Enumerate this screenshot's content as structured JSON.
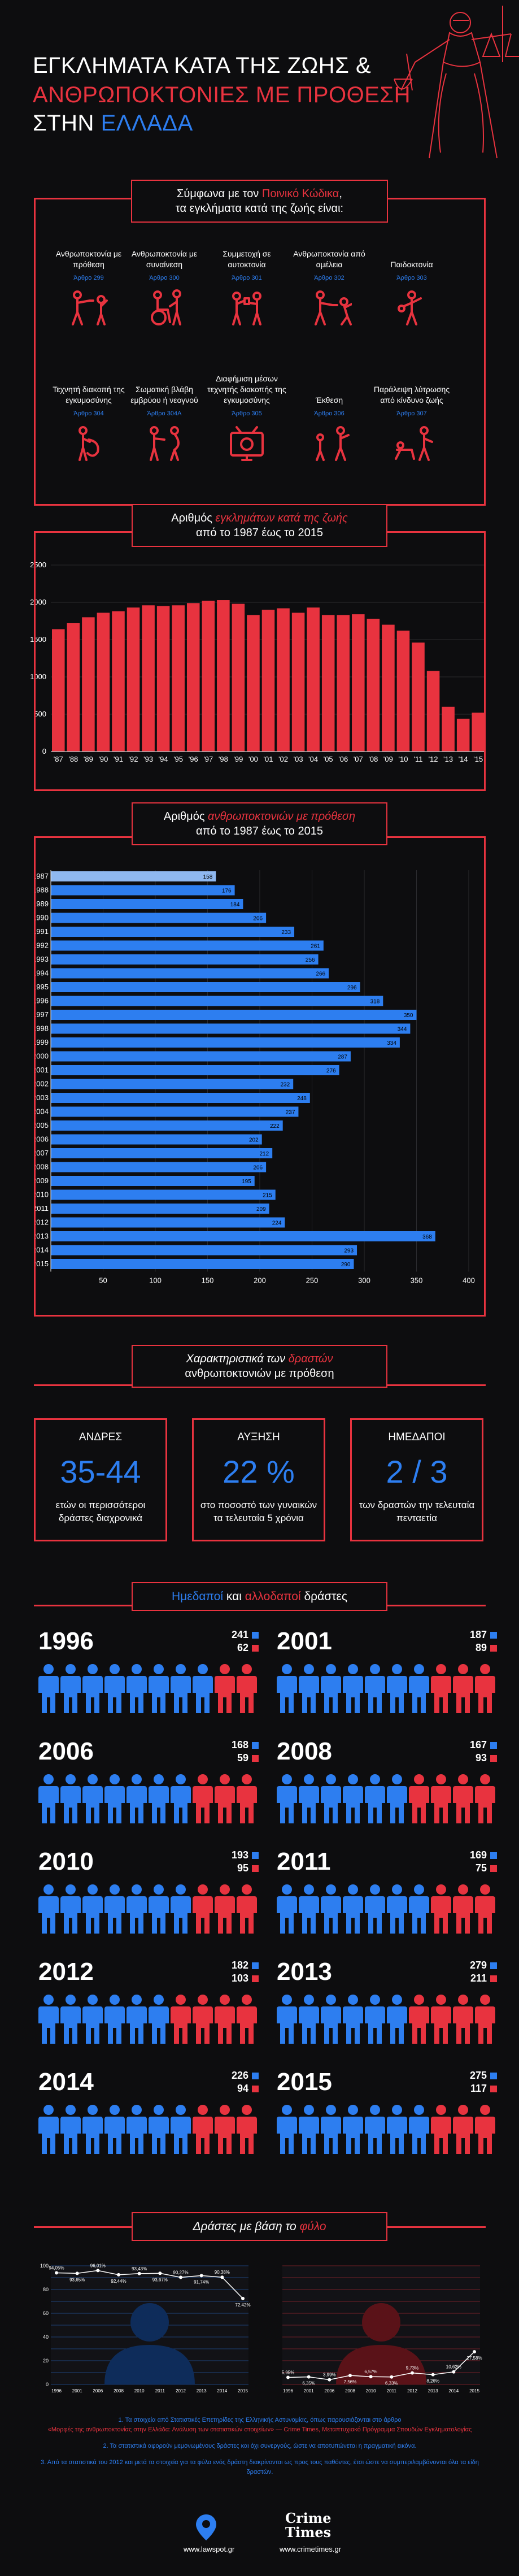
{
  "header": {
    "line1": "ΕΓΚΛΗΜΑΤΑ ΚΑΤΑ ΤΗΣ ΖΩΗΣ &",
    "line2": "ΑΝΘΡΩΠΟΚΤΟΝΙΕΣ ΜΕ ΠΡΟΘΕΣΗ",
    "line3a": "ΣΤΗΝ",
    "line3b": "ΕΛΛΑΔΑ"
  },
  "penal": {
    "title_a": "Σύμφωνα με τον",
    "title_hl": "Ποινικό Κώδικα",
    "title_b": ",",
    "title_line2": "τα εγκλήματα κατά της ζωής είναι:",
    "crimes": [
      {
        "name": "Ανθρωποκτονία με πρόθεση",
        "article": "Άρθρο 299",
        "icon": "gun-shooting-icon"
      },
      {
        "name": "Ανθρωποκτονία με συναίνεση",
        "article": "Άρθρο 300",
        "icon": "wheelchair-assist-icon"
      },
      {
        "name": "Συμμετοχή σε αυτοκτονία",
        "article": "Άρθρο 301",
        "icon": "suicide-assist-icon"
      },
      {
        "name": "Ανθρωποκτονία από αμέλεια",
        "article": "Άρθρο 302",
        "icon": "hunter-accident-icon"
      },
      {
        "name": "Παιδοκτονία",
        "article": "Άρθρο 303",
        "icon": "infanticide-icon"
      },
      {
        "name": "Τεχνητή διακοπή της εγκυμοσύνης",
        "article": "Άρθρο 304",
        "icon": "abortion-icon"
      },
      {
        "name": "Σωματική βλάβη εμβρύου ή νεογνού",
        "article": "Άρθρο 304Α",
        "icon": "pregnant-harm-icon"
      },
      {
        "name": "Διαφήμιση μέσων τεχνητής διακοπής της εγκυμοσύνης",
        "article": "Άρθρο 305",
        "icon": "tv-advert-icon"
      },
      {
        "name": "Έκθεση",
        "article": "Άρθρο 306",
        "icon": "child-abandon-icon"
      },
      {
        "name": "Παράλειψη λύτρωσης από κίνδυνο ζωής",
        "article": "Άρθρο 307",
        "icon": "ignore-help-icon"
      }
    ]
  },
  "crimes_chart_title": {
    "a": "Αριθμός",
    "hl": "εγκλημάτων κατά της ζωής",
    "b": "από το 1987 έως το 2015"
  },
  "homicide_chart_title": {
    "a": "Αριθμός",
    "hl": "ανθρωποκτονιών με πρόθεση",
    "b": "από το 1987 έως το 2015"
  },
  "chart_data": [
    {
      "type": "bar",
      "title": "Αριθμός εγκλημάτων κατά της ζωής από το 1987 έως το 2015",
      "categories": [
        "'87",
        "'88",
        "'89",
        "'90",
        "'91",
        "'92",
        "'93",
        "'94",
        "'95",
        "'96",
        "'97",
        "'98",
        "'99",
        "'00",
        "'01",
        "'02",
        "'03",
        "'04",
        "'05",
        "'06",
        "'07",
        "'08",
        "'09",
        "'10",
        "'11",
        "'12",
        "'13",
        "'14",
        "'15"
      ],
      "values": [
        1640,
        1720,
        1800,
        1860,
        1880,
        1930,
        1960,
        1950,
        1960,
        1990,
        2020,
        2030,
        1980,
        1830,
        1900,
        1920,
        1860,
        1930,
        1830,
        1830,
        1840,
        1780,
        1700,
        1620,
        1460,
        1080,
        600,
        440,
        520
      ],
      "ylim": [
        0,
        2500
      ],
      "yticks": [
        "0",
        "500",
        "1000",
        "1500",
        "2000",
        "2500"
      ]
    },
    {
      "type": "bar",
      "orientation": "horizontal",
      "title": "Αριθμός ανθρωποκτονιών με πρόθεση από το 1987 έως το 2015",
      "categories": [
        "1987",
        "1988",
        "1989",
        "1990",
        "1991",
        "1992",
        "1993",
        "1994",
        "1995",
        "1996",
        "1997",
        "1998",
        "1999",
        "2000",
        "2001",
        "2002",
        "2003",
        "2004",
        "2005",
        "2006",
        "2007",
        "2008",
        "2009",
        "2010",
        "2011",
        "2012",
        "2013",
        "2014",
        "2015"
      ],
      "values": [
        158,
        176,
        184,
        206,
        233,
        261,
        256,
        266,
        296,
        318,
        350,
        344,
        334,
        287,
        276,
        232,
        248,
        237,
        222,
        202,
        212,
        206,
        195,
        215,
        209,
        224,
        368,
        293,
        290
      ],
      "xlim": [
        0,
        400
      ],
      "xticks": [
        "50",
        "100",
        "150",
        "200",
        "250",
        "300",
        "350",
        "400"
      ]
    }
  ],
  "perpetrators": {
    "title_a": "Χαρακτηριστικά των",
    "title_hl": "δραστών",
    "title_b": "ανθρωποκτονιών με πρόθεση",
    "stats": [
      {
        "head": "ΑΝΔΡΕΣ",
        "value": "35-44",
        "desc": "ετών οι περισσότεροι δράστες διαχρονικά"
      },
      {
        "head": "ΑΥΞΗΣΗ",
        "value": "22 %",
        "desc": "στο ποσοστό των γυναικών τα τελευταία 5 χρόνια"
      },
      {
        "head": "ΗΜΕΔΑΠΟΙ",
        "value": "2 / 3",
        "desc": "των δραστών την τελευταία πενταετία"
      }
    ]
  },
  "nationality": {
    "title_a": "Ημεδαποί",
    "title_mid": "και",
    "title_b": "αλλοδαποί",
    "title_c": "δράστες",
    "years": [
      {
        "year": "1996",
        "native": "241",
        "foreign": "62"
      },
      {
        "year": "2001",
        "native": "187",
        "foreign": "89"
      },
      {
        "year": "2006",
        "native": "168",
        "foreign": "59"
      },
      {
        "year": "2008",
        "native": "167",
        "foreign": "93"
      },
      {
        "year": "2010",
        "native": "193",
        "foreign": "95"
      },
      {
        "year": "2011",
        "native": "169",
        "foreign": "75"
      },
      {
        "year": "2012",
        "native": "182",
        "foreign": "103"
      },
      {
        "year": "2013",
        "native": "279",
        "foreign": "211"
      },
      {
        "year": "2014",
        "native": "226",
        "foreign": "94"
      },
      {
        "year": "2015",
        "native": "275",
        "foreign": "117"
      }
    ]
  },
  "gender": {
    "title_a": "Δράστες με βάση το",
    "title_hl": "φύλο",
    "male": {
      "labels": [
        "94,05%",
        "93,65%",
        "96,01%",
        "92,44%",
        "93,43%",
        "93,67%",
        "90,27%",
        "91,74%",
        "90,38%",
        "72,42%"
      ],
      "values": [
        94.05,
        93.65,
        96.01,
        92.44,
        93.43,
        93.67,
        90.27,
        91.74,
        90.38,
        72.42
      ],
      "years": [
        "1996",
        "2001",
        "2006",
        "2008",
        "2010",
        "2011",
        "2012",
        "2013",
        "2014",
        "2015"
      ],
      "yticks": [
        "0",
        "20",
        "40",
        "60",
        "80",
        "100"
      ]
    },
    "female": {
      "labels": [
        "5,95%",
        "6,35%",
        "3,99%",
        "7,56%",
        "6,57%",
        "6,33%",
        "9,73%",
        "8,26%",
        "10,62%",
        "27,58%"
      ],
      "values": [
        5.95,
        6.35,
        3.99,
        7.56,
        6.57,
        6.33,
        9.73,
        8.26,
        10.62,
        27.58
      ],
      "years": [
        "1996",
        "2001",
        "2006",
        "2008",
        "2010",
        "2011",
        "2012",
        "2013",
        "2014",
        "2015"
      ]
    }
  },
  "footer": {
    "note1": "1. Τα στοιχεία από Στατιστικές Επετηρίδες της Ελληνικής Αστυνομίας, όπως παρουσιάζονται στο άρθρο",
    "note1b": "«Μορφές της ανθρωποκτονίας στην Ελλάδα: Ανάλυση των στατιστικών στοιχείων» — Crime Times, Μεταπτυχιακό Πρόγραμμα Σπουδών Εγκληματολογίας",
    "note2": "2. Τα στατιστικά αφορούν μεμονωμένους δράστες και όχι συνεργούς, ώστε να αποτυπώνεται η πραγματική εικόνα.",
    "note3": "3. Από τα στατιστικά του 2012 και μετά τα στοιχεία για τα φύλα ενός δράστη διακρίνονται ως προς τους παθόντες, έτσι ώστε να συμπεριλαμβάνονται όλα τα είδη δραστών.",
    "logo1": "www.lawspot.gr",
    "logo2": "www.crimetimes.gr",
    "logo2_title": "Crime Times"
  },
  "colors": {
    "red": "#e8333f",
    "blue": "#2d7ef0",
    "bg": "#0d0d0f",
    "lightblue": "#8fb8f0"
  }
}
